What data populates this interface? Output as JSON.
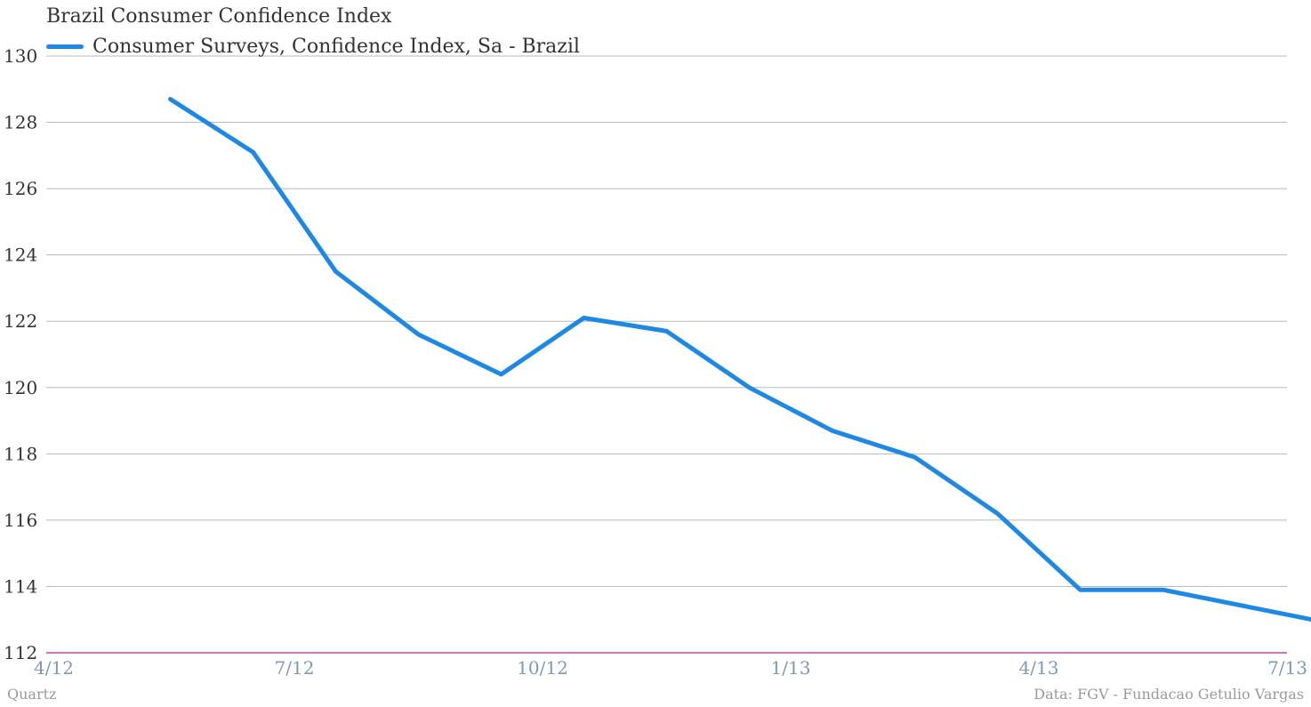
{
  "chart_data": {
    "type": "line",
    "title": "Brazil Consumer Confidence Index",
    "ylim": [
      112,
      130
    ],
    "yticks": [
      130,
      128,
      126,
      124,
      122,
      120,
      118,
      116,
      114,
      112
    ],
    "xticks": [
      {
        "label": "4/12",
        "value": 2012.25
      },
      {
        "label": "7/12",
        "value": 2012.5
      },
      {
        "label": "10/12",
        "value": 2012.75
      },
      {
        "label": "1/13",
        "value": 2013.0
      },
      {
        "label": "4/13",
        "value": 2013.25
      },
      {
        "label": "7/13",
        "value": 2013.5
      }
    ],
    "grid": true,
    "legend_placement": "top-left",
    "series": [
      {
        "name": "Consumer Surveys, Confidence Index, Sa - Brazil",
        "color": "#1e88e5",
        "x": [
          "2012-05",
          "2012-06",
          "2012-07",
          "2012-08",
          "2012-09",
          "2012-10",
          "2012-11",
          "2012-12",
          "2013-01",
          "2013-02",
          "2013-03",
          "2013-04",
          "2013-05",
          "2013-06",
          "2013-07"
        ],
        "values": [
          128.7,
          127.1,
          123.5,
          121.6,
          120.4,
          122.1,
          121.7,
          120.0,
          118.7,
          117.9,
          116.2,
          113.9,
          113.9,
          113.4,
          112.9
        ]
      }
    ]
  },
  "footer": {
    "source_left": "Quartz",
    "source_right": "Data: FGV - Fundacao Getulio Vargas"
  },
  "colors": {
    "series": "#1e88e5",
    "gridline": "#b9b9b9",
    "baseline": "#d63cc0",
    "xtick_text": "#7f98b4"
  }
}
